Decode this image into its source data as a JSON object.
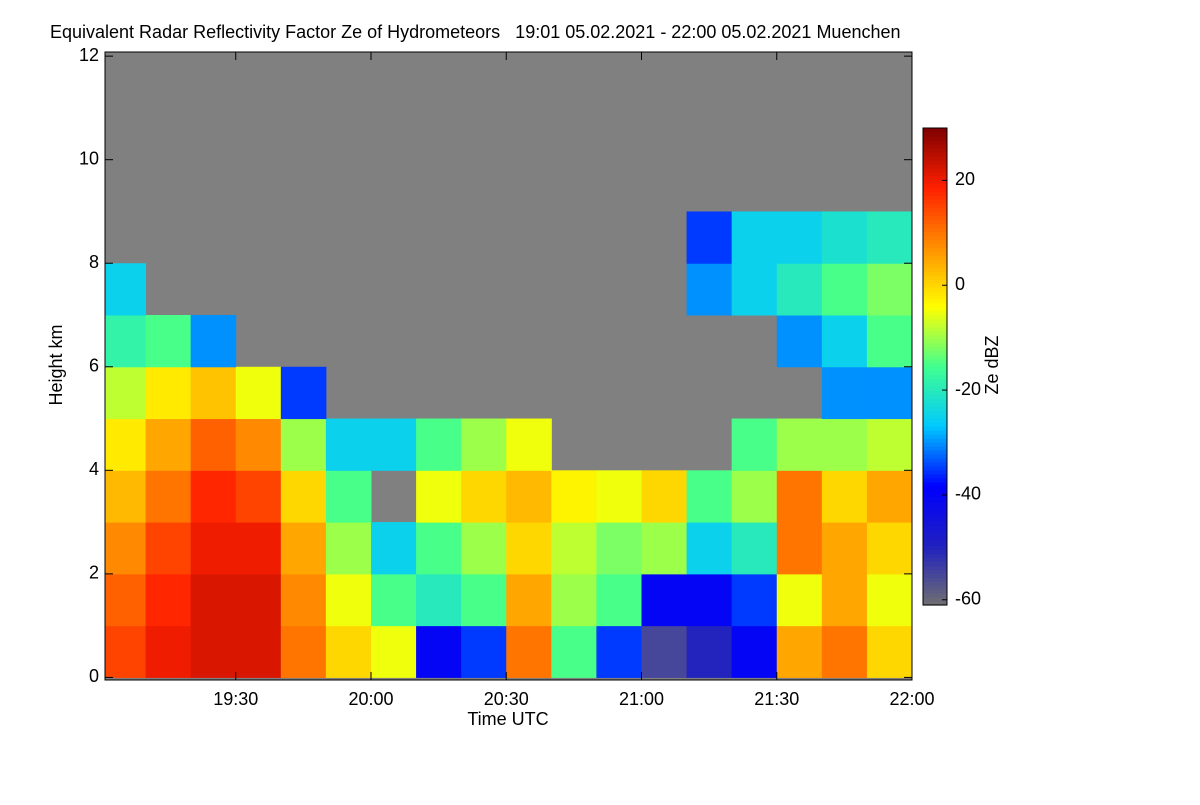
{
  "chart_data": {
    "type": "heatmap",
    "title": "Equivalent Radar Reflectivity Factor Ze of Hydrometeors   19:01 05.02.2021 - 22:00 05.02.2021 Muenchen",
    "x_label": "Time UTC",
    "y_label": "Height km",
    "colorbar_label": "Ze dBZ",
    "xlim": [
      19.0167,
      22.0
    ],
    "xticks": [
      {
        "value": 19.5,
        "label": "19:30"
      },
      {
        "value": 20.0,
        "label": "20:00"
      },
      {
        "value": 20.5,
        "label": "20:30"
      },
      {
        "value": 21.0,
        "label": "21:00"
      },
      {
        "value": 21.5,
        "label": "21:30"
      },
      {
        "value": 22.0,
        "label": "22:00"
      }
    ],
    "ylim": [
      -0.05,
      12.08
    ],
    "yticks": [
      0,
      2,
      4,
      6,
      8,
      10,
      12
    ],
    "zlim": [
      -61,
      30
    ],
    "zticks": [
      -60,
      -40,
      -20,
      0,
      20
    ],
    "background": "#808080",
    "colormap": [
      "#707070",
      "#2020c0",
      "#0000ff",
      "#00c8ff",
      "#40ff90",
      "#ffff00",
      "#ff9000",
      "#ff2000",
      "#800000"
    ],
    "x_edges": [
      19.0167,
      19.1667,
      19.3333,
      19.5,
      19.6667,
      19.8333,
      20.0,
      20.1667,
      20.3333,
      20.5,
      20.6667,
      20.8333,
      21.0,
      21.1667,
      21.3333,
      21.5,
      21.6667,
      21.8333,
      22.0
    ],
    "y_edges": [
      0,
      1,
      2,
      3,
      4,
      5,
      6,
      7,
      8,
      9,
      10
    ],
    "z": [
      [
        15,
        20,
        22,
        22,
        10,
        0,
        -5,
        -40,
        -35,
        10,
        -15,
        -35,
        -55,
        -50,
        -40,
        5,
        10,
        0
      ],
      [
        12,
        18,
        22,
        22,
        8,
        -5,
        -15,
        -20,
        -15,
        5,
        -10,
        -15,
        -40,
        -40,
        -35,
        -5,
        5,
        -5
      ],
      [
        8,
        15,
        20,
        20,
        5,
        -10,
        -25,
        -15,
        -10,
        0,
        -8,
        -12,
        -10,
        -25,
        -20,
        10,
        5,
        0
      ],
      [
        3,
        10,
        18,
        15,
        0,
        -15,
        null,
        -5,
        0,
        3,
        -3,
        -5,
        0,
        -15,
        -10,
        10,
        0,
        5
      ],
      [
        -2,
        5,
        12,
        8,
        -10,
        -25,
        -25,
        -15,
        -10,
        -5,
        null,
        null,
        null,
        null,
        -15,
        -10,
        -10,
        -8
      ],
      [
        -8,
        -2,
        2,
        -5,
        -35,
        null,
        null,
        null,
        null,
        null,
        null,
        null,
        null,
        null,
        null,
        null,
        -30,
        -30
      ],
      [
        -18,
        -15,
        -30,
        null,
        null,
        null,
        null,
        null,
        null,
        null,
        null,
        null,
        null,
        null,
        null,
        -30,
        -25,
        -15
      ],
      [
        -25,
        null,
        null,
        null,
        null,
        null,
        null,
        null,
        null,
        null,
        null,
        null,
        null,
        -30,
        -25,
        -20,
        -15,
        -12
      ],
      [
        null,
        null,
        null,
        null,
        null,
        null,
        null,
        null,
        null,
        null,
        null,
        null,
        null,
        -35,
        -25,
        -25,
        -22,
        -20
      ],
      [
        null,
        null,
        null,
        null,
        null,
        null,
        null,
        null,
        null,
        null,
        null,
        null,
        null,
        null,
        null,
        null,
        null,
        null
      ]
    ]
  }
}
